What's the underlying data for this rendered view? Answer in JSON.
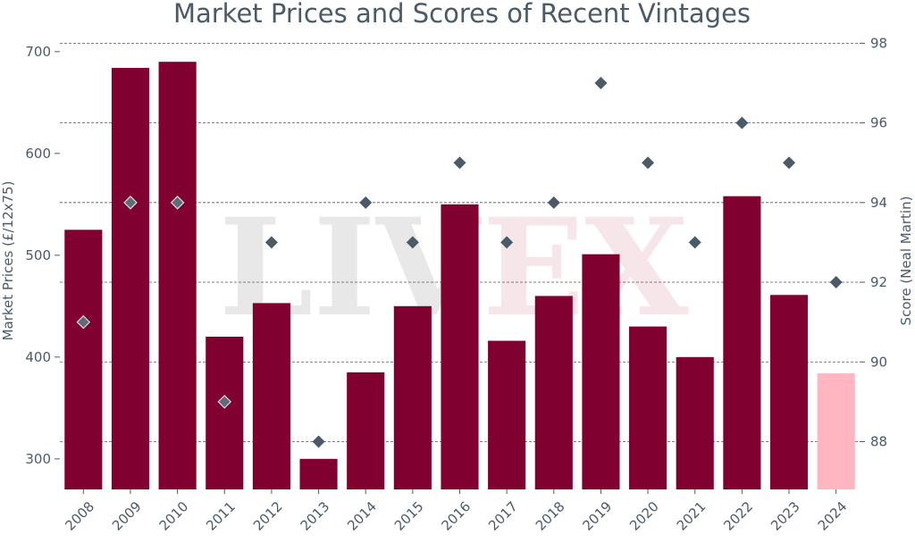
{
  "chart_data": {
    "type": "bar",
    "title": "Market Prices and Scores of Recent Vintages",
    "watermark": {
      "left": "LIV",
      "right": "EX"
    },
    "categories": [
      "2008",
      "2009",
      "2010",
      "2011",
      "2012",
      "2013",
      "2014",
      "2015",
      "2016",
      "2017",
      "2018",
      "2019",
      "2020",
      "2021",
      "2022",
      "2023",
      "2024"
    ],
    "series": [
      {
        "axis": "left",
        "kind": "bar",
        "values": [
          525,
          684,
          690,
          420,
          453,
          300,
          385,
          450,
          550,
          416,
          460,
          501,
          430,
          400,
          558,
          461,
          384
        ],
        "color": "#800030",
        "highlight_index": 16,
        "highlight_color": "#ffb6c1"
      },
      {
        "axis": "right",
        "kind": "scatter",
        "marker": "diamond",
        "values": [
          91,
          94,
          94,
          89,
          93,
          88,
          94,
          93,
          95,
          93,
          94,
          97,
          95,
          93,
          96,
          95,
          92
        ],
        "color": "#4a5a69",
        "over_bar_color": "#5f6b77"
      }
    ],
    "ylabel": "Market Prices (£/12x75)",
    "y2label": "Score (Neal Martin)",
    "ylim": [
      270,
      720
    ],
    "y2lim": [
      86.8,
      98.3
    ],
    "yticks": [
      300,
      400,
      500,
      600,
      700
    ],
    "y2ticks": [
      88,
      90,
      92,
      94,
      96,
      98
    ],
    "grid": true
  }
}
